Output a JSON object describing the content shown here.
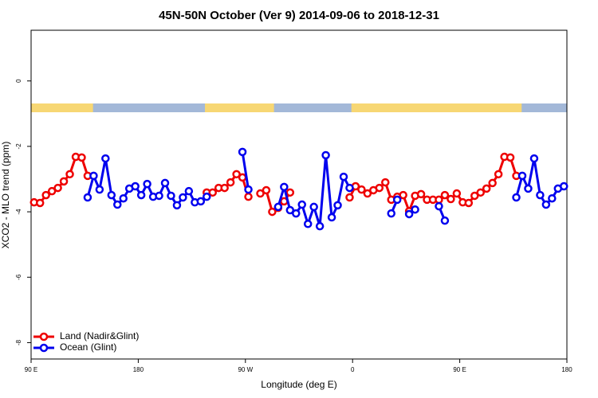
{
  "chart_data": {
    "type": "line",
    "title": "45N-50N October (Ver 9)   2014-09-06 to 2018-12-31",
    "x_label": "Longitude (deg E)",
    "y_label": "XCO2 - MLO trend (ppm)",
    "xlim": [
      90,
      540
    ],
    "ylim": [
      -8.5,
      1.55
    ],
    "xticks": [
      {
        "value": 90,
        "label": "90 E"
      },
      180,
      {
        "value": 270,
        "label": "90 W"
      },
      {
        "value": 360,
        "label": "0"
      },
      {
        "value": 450,
        "label": "90 E"
      },
      {
        "value": 540,
        "label": "180"
      }
    ],
    "yticks": [
      0,
      -2,
      -4,
      -6,
      -8
    ],
    "land_bands": [
      [
        90,
        142
      ],
      [
        236,
        294
      ],
      [
        359,
        502
      ]
    ],
    "land_color": "#f7d774",
    "ocean_color": "#a3b8d8",
    "legend": "bottom-left",
    "x": [
      92.5,
      97.5,
      102.5,
      107.5,
      112.5,
      117.5,
      122.5,
      127.5,
      132.5,
      137.5,
      142.5,
      147.5,
      152.5,
      157.5,
      162.5,
      167.5,
      172.5,
      177.5,
      182.5,
      187.5,
      192.5,
      197.5,
      202.5,
      207.5,
      212.5,
      217.5,
      222.5,
      227.5,
      232.5,
      237.5,
      242.5,
      247.5,
      252.5,
      257.5,
      262.5,
      267.5,
      272.5,
      277.5,
      282.5,
      287.5,
      292.5,
      297.5,
      302.5,
      307.5,
      312.5,
      317.5,
      322.5,
      327.5,
      332.5,
      337.5,
      342.5,
      347.5,
      352.5,
      357.5,
      362.5,
      367.5,
      372.5,
      377.5,
      382.5,
      387.5,
      392.5,
      397.5,
      402.5,
      407.5,
      412.5,
      417.5,
      422.5,
      427.5,
      432.5,
      437.5,
      442.5,
      447.5,
      452.5,
      457.5,
      462.5,
      467.5,
      472.5,
      477.5,
      482.5,
      487.5,
      492.5,
      497.5,
      502.5,
      507.5,
      512.5,
      517.5,
      522.5,
      527.5,
      532.5,
      537.5
    ],
    "series": [
      {
        "name": "Land (Nadir&Glint)",
        "color": "#ee0000",
        "values": [
          -3.71,
          -3.73,
          -3.49,
          -3.37,
          -3.27,
          -3.07,
          -2.85,
          -2.32,
          -2.34,
          -2.9,
          null,
          null,
          null,
          null,
          null,
          null,
          null,
          null,
          null,
          null,
          null,
          null,
          null,
          null,
          null,
          null,
          null,
          null,
          null,
          -3.41,
          -3.41,
          -3.27,
          -3.27,
          -3.1,
          -2.85,
          -2.95,
          -3.54,
          null,
          -3.44,
          -3.34,
          -4.0,
          -3.88,
          -3.68,
          -3.41,
          null,
          null,
          null,
          null,
          null,
          null,
          null,
          null,
          null,
          -3.56,
          -3.22,
          -3.32,
          -3.44,
          -3.34,
          -3.27,
          -3.1,
          -3.63,
          -3.54,
          -3.49,
          -3.98,
          -3.51,
          -3.46,
          -3.63,
          -3.63,
          -3.63,
          -3.49,
          -3.61,
          -3.44,
          -3.71,
          -3.73,
          -3.51,
          -3.41,
          -3.29,
          -3.12,
          -2.85,
          -2.32,
          -2.34,
          -2.9,
          null,
          null,
          null,
          null,
          null,
          null,
          null,
          null
        ]
      },
      {
        "name": "Ocean (Glint)",
        "color": "#0000ee",
        "values": [
          null,
          null,
          null,
          null,
          null,
          null,
          null,
          null,
          null,
          -3.56,
          -2.9,
          -3.32,
          -2.37,
          -3.49,
          -3.78,
          -3.59,
          -3.29,
          -3.22,
          -3.49,
          -3.15,
          -3.54,
          -3.51,
          -3.12,
          -3.51,
          -3.8,
          -3.56,
          -3.37,
          -3.71,
          -3.68,
          -3.54,
          null,
          null,
          null,
          null,
          null,
          -2.17,
          -3.32,
          null,
          null,
          null,
          null,
          -3.85,
          -3.24,
          -3.95,
          -4.05,
          -3.78,
          -4.37,
          -3.85,
          -4.44,
          -2.27,
          -4.17,
          -3.8,
          -2.93,
          -3.27,
          null,
          null,
          null,
          null,
          null,
          null,
          -4.05,
          -3.63,
          null,
          -4.07,
          -3.93,
          null,
          null,
          null,
          -3.83,
          -4.27,
          null,
          null,
          null,
          null,
          null,
          null,
          null,
          null,
          null,
          null,
          null,
          -3.56,
          -2.9,
          -3.29,
          -2.37,
          -3.49,
          -3.78,
          -3.59,
          -3.29,
          -3.22
        ]
      }
    ]
  }
}
